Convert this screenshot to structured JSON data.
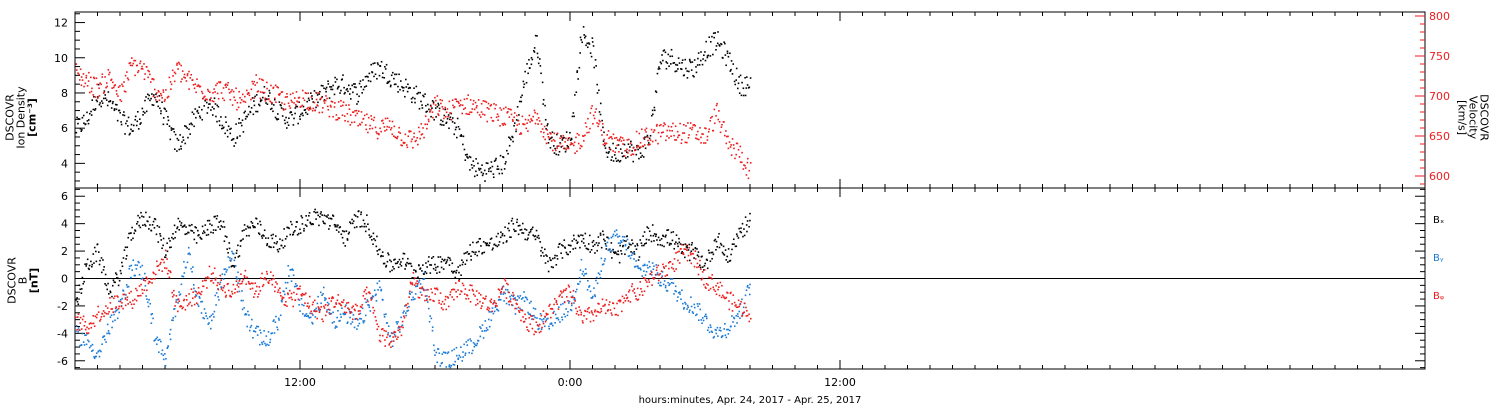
{
  "xaxis": {
    "label": "hours:minutes, Apr. 24, 2017 - Apr. 25, 2017",
    "start_hour": 2,
    "end_hour": 62,
    "major_ticks": [
      {
        "hour": 12,
        "label": "12:00"
      },
      {
        "hour": 24,
        "label": "0:00"
      },
      {
        "hour": 36,
        "label": "12:00"
      }
    ]
  },
  "colors": {
    "black": "#000000",
    "red": "#ee1c1c",
    "blue": "#1a7ad6"
  },
  "chart_data": [
    {
      "type": "scatter",
      "panel": "top",
      "ylabel_left": [
        "DSCOVR",
        "Ion Density",
        "[cm⁻³]"
      ],
      "ylabel_right": [
        "DSCOVR",
        "Velocity",
        "[km/s]"
      ],
      "ylim_left": [
        2.6,
        12.6
      ],
      "yticks_left": [
        4,
        6,
        8,
        10,
        12
      ],
      "ylim_right": [
        585,
        805
      ],
      "yticks_right": [
        600,
        650,
        700,
        750,
        800
      ],
      "series": [
        {
          "axis": "left",
          "color": "black",
          "x": [
            2.0,
            2.5,
            3.0,
            3.5,
            4.0,
            4.5,
            5.0,
            5.5,
            6.0,
            6.5,
            7.0,
            7.5,
            8.0,
            8.5,
            9.0,
            9.5,
            10.0,
            10.5,
            11.0,
            11.5,
            12.0,
            12.5,
            13.0,
            13.5,
            14.0,
            14.5,
            15.0,
            15.5,
            16.0,
            16.5,
            17.0,
            17.5,
            18.0,
            18.5,
            19.0,
            19.5,
            20.0,
            20.5,
            21.0,
            21.5,
            22.0,
            22.5,
            23.0,
            23.5,
            24.0,
            24.5,
            25.0,
            25.5,
            26.0,
            26.5,
            27.0,
            27.5,
            28.0,
            28.5,
            29.0,
            29.5,
            30.0,
            30.5,
            31.0,
            31.5,
            32.0
          ],
          "y": [
            6.0,
            6.5,
            8.0,
            7.5,
            6.5,
            6.0,
            7.0,
            8.0,
            6.5,
            5.0,
            6.0,
            7.0,
            7.5,
            6.5,
            5.5,
            6.5,
            7.5,
            8.0,
            7.0,
            6.5,
            7.0,
            7.5,
            8.0,
            8.5,
            8.5,
            8.0,
            9.0,
            9.5,
            9.0,
            8.5,
            8.0,
            7.5,
            7.0,
            6.5,
            6.0,
            4.0,
            3.6,
            3.7,
            4.0,
            6.0,
            9.0,
            11.0,
            5.5,
            5.0,
            5.5,
            11.5,
            10.5,
            5.0,
            4.5,
            5.0,
            4.5,
            5.5,
            10.0,
            10.0,
            9.5,
            9.5,
            10.5,
            11.0,
            10.0,
            8.5,
            8.5
          ]
        },
        {
          "axis": "right",
          "color": "red",
          "x": [
            2.0,
            2.5,
            3.0,
            3.5,
            4.0,
            4.5,
            5.0,
            5.5,
            6.0,
            6.5,
            7.0,
            7.5,
            8.0,
            8.5,
            9.0,
            9.5,
            10.0,
            10.5,
            11.0,
            11.5,
            12.0,
            12.5,
            13.0,
            13.5,
            14.0,
            14.5,
            15.0,
            15.5,
            16.0,
            16.5,
            17.0,
            17.5,
            18.0,
            18.5,
            19.0,
            19.5,
            20.0,
            20.5,
            21.0,
            21.5,
            22.0,
            22.5,
            23.0,
            23.5,
            24.0,
            24.5,
            25.0,
            25.5,
            26.0,
            26.5,
            27.0,
            27.5,
            28.0,
            28.5,
            29.0,
            29.5,
            30.0,
            30.5,
            31.0,
            31.5,
            32.0
          ],
          "y": [
            730,
            720,
            710,
            725,
            700,
            740,
            735,
            710,
            700,
            735,
            720,
            710,
            705,
            710,
            700,
            690,
            715,
            705,
            700,
            690,
            700,
            695,
            690,
            685,
            680,
            670,
            665,
            660,
            665,
            650,
            645,
            660,
            690,
            680,
            690,
            690,
            685,
            680,
            675,
            670,
            660,
            680,
            650,
            640,
            635,
            650,
            680,
            650,
            640,
            635,
            645,
            650,
            655,
            655,
            655,
            655,
            650,
            680,
            640,
            630,
            605
          ]
        }
      ]
    },
    {
      "type": "scatter",
      "panel": "bottom",
      "ylabel_left": [
        "DSCOVR",
        "B",
        "[nT]"
      ],
      "ylim": [
        -6.6,
        6.6
      ],
      "yticks": [
        -6,
        -4,
        -2,
        0,
        2,
        4,
        6
      ],
      "zero_line": true,
      "series": [
        {
          "name": "Bₓ",
          "color": "black",
          "x": [
            2.0,
            2.5,
            3.0,
            3.5,
            4.0,
            4.5,
            5.0,
            5.5,
            6.0,
            6.5,
            7.0,
            7.5,
            8.0,
            8.5,
            9.0,
            9.5,
            10.0,
            10.5,
            11.0,
            11.5,
            12.0,
            12.5,
            13.0,
            13.5,
            14.0,
            14.5,
            15.0,
            15.5,
            16.0,
            16.5,
            17.0,
            17.5,
            18.0,
            18.5,
            19.0,
            19.5,
            20.0,
            20.5,
            21.0,
            21.5,
            22.0,
            22.5,
            23.0,
            23.5,
            24.0,
            24.5,
            25.0,
            25.5,
            26.0,
            26.5,
            27.0,
            27.5,
            28.0,
            28.5,
            29.0,
            29.5,
            30.0,
            30.5,
            31.0,
            31.5,
            32.0
          ],
          "y": [
            -2.0,
            1.0,
            2.0,
            -1.0,
            0.5,
            3.5,
            4.5,
            4.0,
            2.0,
            4.0,
            3.5,
            3.0,
            4.0,
            4.0,
            1.0,
            3.5,
            4.0,
            3.0,
            2.5,
            3.5,
            4.0,
            4.5,
            4.5,
            4.0,
            3.0,
            4.5,
            4.0,
            2.0,
            1.0,
            1.5,
            0.5,
            1.0,
            1.0,
            1.5,
            0.5,
            2.0,
            2.5,
            2.5,
            3.0,
            4.0,
            3.5,
            3.0,
            1.0,
            2.0,
            2.5,
            3.0,
            2.5,
            3.0,
            1.5,
            2.5,
            2.0,
            3.5,
            3.0,
            3.0,
            2.0,
            2.0,
            1.0,
            3.0,
            1.5,
            3.5,
            4.2
          ]
        },
        {
          "name": "Bᵧ",
          "color": "blue",
          "x": [
            2.0,
            2.5,
            3.0,
            3.5,
            4.0,
            4.5,
            5.0,
            5.5,
            6.0,
            6.5,
            7.0,
            7.5,
            8.0,
            8.5,
            9.0,
            9.5,
            10.0,
            10.5,
            11.0,
            11.5,
            12.0,
            12.5,
            13.0,
            13.5,
            14.0,
            14.5,
            15.0,
            15.5,
            16.0,
            16.5,
            17.0,
            17.5,
            18.0,
            18.5,
            19.0,
            19.5,
            20.0,
            20.5,
            21.0,
            21.5,
            22.0,
            22.5,
            23.0,
            23.5,
            24.0,
            24.5,
            25.0,
            25.5,
            26.0,
            26.5,
            27.0,
            27.5,
            28.0,
            28.5,
            29.0,
            29.5,
            30.0,
            30.5,
            31.0,
            31.5,
            32.0
          ],
          "y": [
            -4.0,
            -4.5,
            -5.5,
            -3.5,
            -2.0,
            1.0,
            0.5,
            -4.0,
            -6.0,
            -1.5,
            2.0,
            -2.0,
            -3.0,
            0.0,
            2.0,
            -2.5,
            -4.0,
            -4.5,
            -3.0,
            1.0,
            -2.0,
            -3.0,
            -1.0,
            -3.0,
            -2.5,
            -3.5,
            -2.0,
            -0.5,
            -4.5,
            -3.0,
            -1.0,
            0.0,
            -5.5,
            -6.0,
            -5.5,
            -5.0,
            -4.0,
            -2.5,
            -1.0,
            -2.0,
            -1.5,
            -3.0,
            -3.5,
            -2.5,
            -2.0,
            1.0,
            -1.5,
            2.0,
            3.0,
            2.5,
            0.5,
            1.0,
            0.0,
            -0.5,
            -1.5,
            -2.0,
            -3.0,
            -4.0,
            -3.5,
            -2.5,
            -0.5
          ]
        },
        {
          "name": "Bᵩ",
          "color": "red",
          "x": [
            2.0,
            2.5,
            3.0,
            3.5,
            4.0,
            4.5,
            5.0,
            5.5,
            6.0,
            6.5,
            7.0,
            7.5,
            8.0,
            8.5,
            9.0,
            9.5,
            10.0,
            10.5,
            11.0,
            11.5,
            12.0,
            12.5,
            13.0,
            13.5,
            14.0,
            14.5,
            15.0,
            15.5,
            16.0,
            16.5,
            17.0,
            17.5,
            18.0,
            18.5,
            19.0,
            19.5,
            20.0,
            20.5,
            21.0,
            21.5,
            22.0,
            22.5,
            23.0,
            23.5,
            24.0,
            24.5,
            25.0,
            25.5,
            26.0,
            26.5,
            27.0,
            27.5,
            28.0,
            28.5,
            29.0,
            29.5,
            30.0,
            30.5,
            31.0,
            31.5,
            32.0
          ],
          "y": [
            -3.0,
            -3.5,
            -2.5,
            -2.0,
            -1.5,
            -1.5,
            -0.5,
            0.5,
            1.5,
            -2.0,
            -1.5,
            -1.0,
            0.5,
            -0.5,
            -1.0,
            0.5,
            -1.0,
            0.5,
            -1.0,
            -1.5,
            -1.0,
            -2.0,
            -2.5,
            -1.5,
            -2.0,
            -2.5,
            -1.0,
            -4.0,
            -4.5,
            -3.5,
            0.0,
            -1.5,
            -1.0,
            -2.0,
            -0.5,
            -1.0,
            -1.5,
            -2.0,
            -0.5,
            -1.5,
            -3.0,
            -3.5,
            -2.5,
            -1.5,
            -1.0,
            -3.0,
            -2.5,
            -2.0,
            -2.5,
            -1.0,
            -1.0,
            0.0,
            0.5,
            1.0,
            2.0,
            1.5,
            0.0,
            -0.5,
            -1.5,
            -2.0,
            -2.5
          ]
        }
      ]
    }
  ]
}
